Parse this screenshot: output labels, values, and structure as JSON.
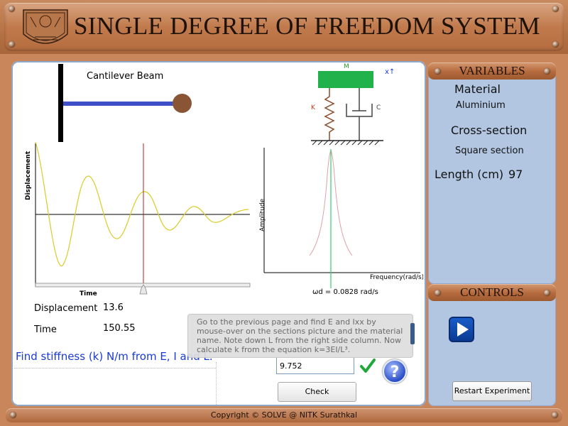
{
  "header": {
    "title": "SINGLE DEGREE OF FREEDOM SYSTEM",
    "logo_icon": "institute-seal-icon"
  },
  "cantilever": {
    "title": "Cantilever Beam"
  },
  "sdof_diagram": {
    "mass_label": "M",
    "spring_label": "K",
    "damper_label": "C",
    "displacement_label": "x↑"
  },
  "response_graph": {
    "ylabel": "Displacement",
    "xlabel": "Time"
  },
  "frequency_graph": {
    "ylabel": "Amplitude",
    "xlabel": "Frequency(rad/s)",
    "readout": "ωd = 0.0828 rad/s"
  },
  "readouts": {
    "displacement_label": "Displacement",
    "displacement_value": "13.6",
    "time_label": "Time",
    "time_value": "150.55"
  },
  "task": {
    "prompt": "Find stiffness (k) N/m from E, I and L.",
    "answer_value": "9.752",
    "check_label": "Check",
    "tooltip": "Go to the previous page and find E and Ixx by mouse-over on the sections picture and the material name. Note down L from the right side column. Now calculate k from the equation k=3EI/L³."
  },
  "variables": {
    "heading": "VARIABLES",
    "material_label": "Material",
    "material_value": "Aluminium",
    "section_label": "Cross-section",
    "section_value": "Square section",
    "length_label": "Length (cm)",
    "length_value": "97"
  },
  "controls": {
    "heading": "CONTROLS",
    "restart_label": "Restart Experiment"
  },
  "footer": {
    "text": "Copyright © SOLVE @ NITK Surathkal"
  },
  "colors": {
    "accent_brown": "#b87446",
    "panel_blue": "#b2c6e2",
    "beam_blue": "#3f4fc8",
    "link_blue": "#1a3ad8"
  }
}
